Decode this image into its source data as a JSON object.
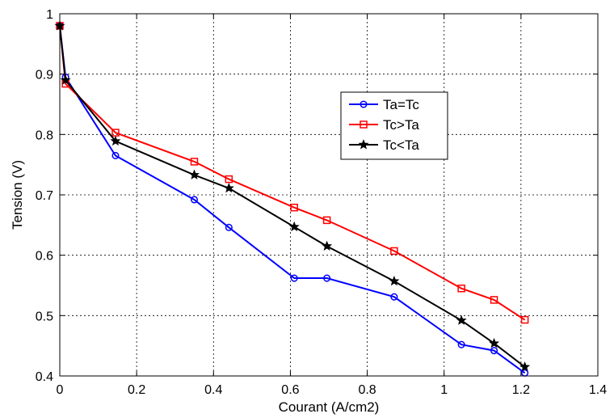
{
  "chart_data": {
    "type": "line",
    "title": "",
    "xlabel": "Courant (A/cm2)",
    "ylabel": "Tension (V)",
    "xlim": [
      0,
      1.4
    ],
    "ylim": [
      0.4,
      1.0
    ],
    "xticks": [
      0,
      0.2,
      0.4,
      0.6,
      0.8,
      1,
      1.2,
      1.4
    ],
    "xtick_labels": [
      "0",
      "0.2",
      "0.4",
      "0.6",
      "0.8",
      "1",
      "1.2",
      "1.4"
    ],
    "yticks": [
      0.4,
      0.5,
      0.6,
      0.7,
      0.8,
      0.9,
      1.0
    ],
    "ytick_labels": [
      "0.4",
      "0.5",
      "0.6",
      "0.7",
      "0.8",
      "0.9",
      "1"
    ],
    "grid": true,
    "legend_position": "center-right",
    "series": [
      {
        "name": "Ta=Tc",
        "color": "#0000ff",
        "marker": "circle",
        "x": [
          0,
          0.015,
          0.145,
          0.35,
          0.44,
          0.61,
          0.695,
          0.87,
          1.045,
          1.13,
          1.21
        ],
        "y": [
          0.98,
          0.895,
          0.765,
          0.692,
          0.646,
          0.562,
          0.562,
          0.531,
          0.452,
          0.442,
          0.405
        ]
      },
      {
        "name": "Tc>Ta",
        "color": "#ff0000",
        "marker": "square",
        "x": [
          0,
          0.015,
          0.145,
          0.35,
          0.44,
          0.61,
          0.695,
          0.87,
          1.045,
          1.13,
          1.21
        ],
        "y": [
          0.98,
          0.884,
          0.803,
          0.755,
          0.726,
          0.679,
          0.658,
          0.607,
          0.545,
          0.526,
          0.493
        ]
      },
      {
        "name": "Tc<Ta",
        "color": "#000000",
        "marker": "star",
        "x": [
          0,
          0.015,
          0.145,
          0.35,
          0.44,
          0.61,
          0.695,
          0.87,
          1.045,
          1.13,
          1.21
        ],
        "y": [
          0.98,
          0.89,
          0.789,
          0.733,
          0.711,
          0.647,
          0.615,
          0.557,
          0.492,
          0.454,
          0.415
        ]
      }
    ]
  }
}
